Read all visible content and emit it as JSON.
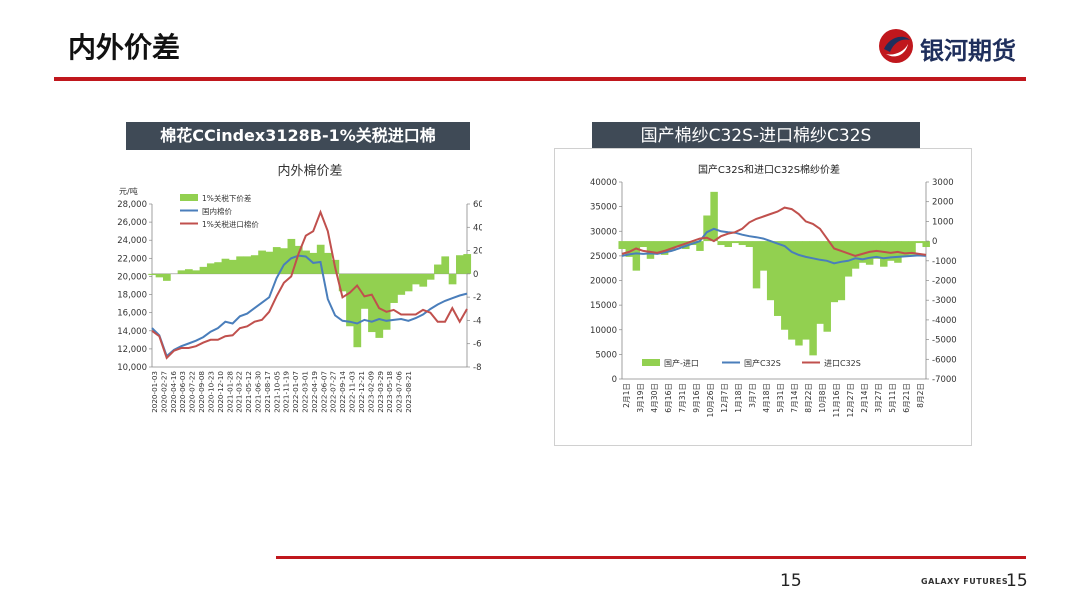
{
  "page": {
    "title": "内外价差",
    "logo_text": "银河期货",
    "page_number": "15",
    "footer_brand": "GALAXY FUTURES",
    "footer_number": "15"
  },
  "colors": {
    "accent_red": "#c0171d",
    "header_bg": "#3f4a56",
    "green": "#92d050",
    "blue": "#4a7ebb",
    "red_line": "#c0504d"
  },
  "charts": {
    "left": {
      "header": "棉花CCindex3128B-1%关税进口棉"
    },
    "right": {
      "header": "国产棉纱C32S-进口棉纱C32S"
    }
  },
  "chart_data": [
    {
      "type": "line",
      "title": "内外棉价差",
      "ylabel": "元/吨",
      "ylim": [
        10000,
        28000
      ],
      "y2lim": [
        -8000,
        6000
      ],
      "yticks": [
        "28,000",
        "26,000",
        "24,000",
        "22,000",
        "20,000",
        "18,000",
        "16,000",
        "14,000",
        "12,000",
        "10,000"
      ],
      "y2ticks": [
        "6000",
        "4000",
        "2000",
        "0",
        "-2000",
        "-4000",
        "-6000",
        "-8000"
      ],
      "xticks": [
        "2020-01-03",
        "2020-02-27",
        "2020-04-16",
        "2020-06-03",
        "2020-07-22",
        "2020-09-08",
        "2020-10-23",
        "2020-12-10",
        "2021-01-28",
        "2021-03-22",
        "2021-05-12",
        "2021-06-30",
        "2021-08-17",
        "2021-10-05",
        "2021-11-19",
        "2022-01-07",
        "2022-03-01",
        "2022-04-19",
        "2022-06-07",
        "2022-07-27",
        "2022-09-14",
        "2022-11-03",
        "2022-12-21",
        "2023-02-09",
        "2023-03-29",
        "2023-05-18",
        "2023-07-06",
        "2023-08-21"
      ],
      "legend": [
        "1%关税下价差",
        "国内棉价",
        "1%关税进口棉价"
      ],
      "legend_position": "top-left",
      "x": [
        0,
        1,
        2,
        3,
        4,
        5,
        6,
        7,
        8,
        9,
        10,
        11,
        12,
        13,
        14,
        15,
        16,
        17,
        18,
        19,
        20,
        21,
        22,
        23,
        24,
        25,
        26,
        27,
        28,
        29,
        30,
        31,
        32,
        33,
        34,
        35,
        36,
        37,
        38,
        39,
        40,
        41,
        42,
        43
      ],
      "series": [
        {
          "name": "1%关税下价差",
          "type": "area",
          "axis": "right",
          "values": [
            -100,
            -300,
            -600,
            0,
            300,
            400,
            300,
            600,
            900,
            1000,
            1300,
            1200,
            1500,
            1500,
            1600,
            2000,
            1900,
            2300,
            2200,
            3000,
            2400,
            2000,
            1800,
            2500,
            1800,
            1200,
            -1500,
            -4500,
            -6300,
            -3000,
            -5000,
            -5500,
            -4800,
            -2500,
            -1800,
            -1500,
            -900,
            -1100,
            -500,
            800,
            1500,
            -900,
            1600,
            1700
          ]
        },
        {
          "name": "国内棉价",
          "axis": "left",
          "values": [
            14300,
            13500,
            11200,
            11900,
            12300,
            12600,
            12900,
            13300,
            13900,
            14300,
            15000,
            14800,
            15600,
            15900,
            16500,
            17100,
            17700,
            19800,
            21300,
            22000,
            22300,
            22200,
            21500,
            21600,
            17500,
            15700,
            15100,
            15000,
            14800,
            15200,
            15000,
            15300,
            15100,
            15200,
            15300,
            15100,
            15400,
            15800,
            16400,
            16900,
            17300,
            17600,
            17900,
            18100
          ]
        },
        {
          "name": "1%关税进口棉价",
          "axis": "left",
          "values": [
            14000,
            13400,
            11000,
            11800,
            12100,
            12100,
            12300,
            12700,
            13000,
            13000,
            13400,
            13500,
            14300,
            14500,
            15000,
            15200,
            16100,
            17800,
            19300,
            20000,
            22500,
            24500,
            25000,
            27100,
            25000,
            21000,
            17700,
            18200,
            19000,
            17800,
            18000,
            16500,
            16100,
            16300,
            15800,
            15800,
            15800,
            16300,
            16000,
            15000,
            15000,
            16500,
            15000,
            16400
          ]
        }
      ]
    },
    {
      "type": "line",
      "title": "国产C32S和进口C32S棉纱价差",
      "ylim": [
        0,
        40000
      ],
      "y2lim": [
        -7000,
        3000
      ],
      "yticks": [
        "40000",
        "35000",
        "30000",
        "25000",
        "20000",
        "15000",
        "10000",
        "5000",
        "0"
      ],
      "y2ticks": [
        "3000",
        "2000",
        "1000",
        "0",
        "-1000",
        "-2000",
        "-3000",
        "-4000",
        "-5000",
        "-6000",
        "-7000"
      ],
      "xticks": [
        "2月1日",
        "3月19日",
        "4月30日",
        "6月16日",
        "7月31日",
        "9月16日",
        "10月26日",
        "12月7日",
        "1月18日",
        "3月7日",
        "4月18日",
        "5月31日",
        "7月14日",
        "8月22日",
        "10月8日",
        "11月16日",
        "12月27日",
        "2月14日",
        "3月27日",
        "5月11日",
        "6月21日",
        "8月2日"
      ],
      "legend": [
        "国产-进口",
        "国产C32S",
        "进口C32S"
      ],
      "legend_position": "bottom",
      "x": [
        0,
        1,
        2,
        3,
        4,
        5,
        6,
        7,
        8,
        9,
        10,
        11,
        12,
        13,
        14,
        15,
        16,
        17,
        18,
        19,
        20,
        21,
        22,
        23,
        24,
        25,
        26,
        27,
        28,
        29,
        30,
        31,
        32,
        33,
        34,
        35,
        36,
        37,
        38,
        39,
        40,
        41,
        42,
        43
      ],
      "series": [
        {
          "name": "国产-进口",
          "type": "area",
          "axis": "right",
          "values": [
            -400,
            -800,
            -1500,
            -300,
            -900,
            -600,
            -700,
            -500,
            -300,
            -400,
            -200,
            -500,
            1300,
            2500,
            -200,
            -300,
            -100,
            -200,
            -300,
            -2400,
            -1500,
            -3000,
            -3800,
            -4500,
            -5000,
            -5300,
            -5000,
            -5800,
            -4200,
            -4600,
            -3100,
            -3000,
            -1800,
            -1400,
            -1100,
            -1200,
            -900,
            -1300,
            -1000,
            -1100,
            -800,
            -700,
            -100,
            -300
          ]
        },
        {
          "name": "国产C32S",
          "axis": "left",
          "values": [
            25000,
            25300,
            25500,
            25400,
            25500,
            25400,
            25700,
            26000,
            26500,
            27000,
            27500,
            28000,
            29800,
            30500,
            30000,
            29800,
            29700,
            29300,
            29000,
            28800,
            28500,
            28000,
            27500,
            27000,
            25800,
            25200,
            24800,
            24500,
            24200,
            24000,
            23500,
            23800,
            24000,
            24500,
            24300,
            24600,
            24800,
            24500,
            24700,
            24800,
            24900,
            25000,
            25100,
            25000
          ]
        },
        {
          "name": "进口C32S",
          "axis": "left",
          "values": [
            25400,
            25800,
            26500,
            26000,
            25800,
            25600,
            26000,
            26500,
            27000,
            27500,
            28000,
            28500,
            28700,
            28000,
            29000,
            29500,
            29800,
            30500,
            31800,
            32500,
            33000,
            33500,
            34000,
            34800,
            34500,
            33500,
            32000,
            31500,
            30500,
            28500,
            26500,
            26000,
            25500,
            25000,
            25400,
            25800,
            26000,
            25800,
            25600,
            25800,
            25500,
            25600,
            25400,
            25200
          ]
        }
      ]
    }
  ]
}
